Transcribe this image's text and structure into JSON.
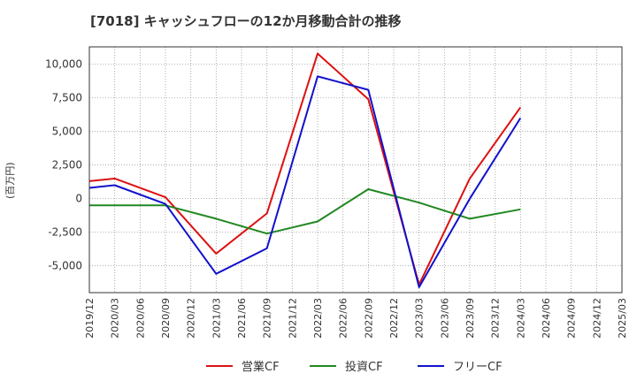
{
  "chart_data": {
    "type": "line",
    "title": "[7018]  キャッシュフローの12か月移動合計の推移",
    "ylabel": "(百万円)",
    "xlabel": "",
    "x": [
      "2019/12",
      "2020/03",
      "2020/06",
      "2020/09",
      "2020/12",
      "2021/03",
      "2021/06",
      "2021/09",
      "2021/12",
      "2022/03",
      "2022/06",
      "2022/09",
      "2022/12",
      "2023/03",
      "2023/06",
      "2023/09",
      "2023/12",
      "2024/03",
      "2024/06",
      "2024/09",
      "2024/12",
      "2025/03"
    ],
    "yticks": [
      10000,
      7500,
      5000,
      2500,
      0,
      -2500,
      -5000
    ],
    "ytick_labels": [
      "10,000",
      "7,500",
      "5,000",
      "2,500",
      "0",
      "-2,500",
      "-5,000"
    ],
    "ylim": [
      -7000,
      11300
    ],
    "grid": true,
    "legend_position": "bottom",
    "series": [
      {
        "name": "営業CF",
        "color": "#dd1111",
        "values": [
          1300,
          1500,
          null,
          100,
          null,
          -4100,
          null,
          -1100,
          null,
          10800,
          null,
          7400,
          null,
          -6400,
          null,
          1500,
          null,
          6800,
          null,
          null,
          null,
          null
        ]
      },
      {
        "name": "投資CF",
        "color": "#228822",
        "values": [
          -500,
          -500,
          null,
          -500,
          null,
          -1500,
          null,
          -2600,
          null,
          -1700,
          null,
          700,
          null,
          -300,
          null,
          -1500,
          null,
          -800,
          null,
          null,
          null,
          null
        ]
      },
      {
        "name": "フリーCF",
        "color": "#1111cc",
        "values": [
          800,
          1000,
          null,
          -400,
          null,
          -5600,
          null,
          -3700,
          null,
          9100,
          null,
          8100,
          null,
          -6600,
          null,
          0,
          null,
          6000,
          null,
          null,
          null,
          null
        ]
      }
    ]
  }
}
